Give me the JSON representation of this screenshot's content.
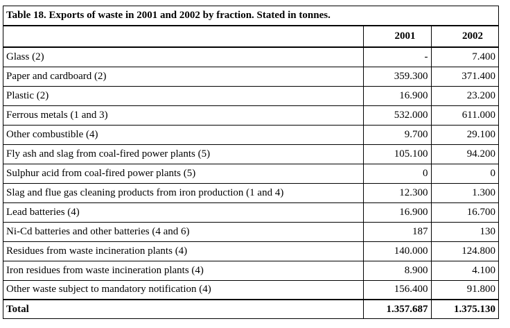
{
  "table": {
    "title": "Table 18. Exports of waste in 2001 and 2002 by fraction. Stated in tonnes.",
    "headers": [
      "",
      "2001",
      "2002"
    ],
    "rows": [
      {
        "label": "Glass (2)",
        "y2001": "-",
        "y2002": "7.400"
      },
      {
        "label": "Paper and cardboard (2)",
        "y2001": "359.300",
        "y2002": "371.400"
      },
      {
        "label": "Plastic (2)",
        "y2001": "16.900",
        "y2002": "23.200"
      },
      {
        "label": "Ferrous metals (1 and 3)",
        "y2001": "532.000",
        "y2002": "611.000"
      },
      {
        "label": "Other combustible (4)",
        "y2001": "9.700",
        "y2002": "29.100"
      },
      {
        "label": "Fly ash and slag from coal-fired power plants (5)",
        "y2001": "105.100",
        "y2002": "94.200"
      },
      {
        "label": "Sulphur acid from coal-fired power plants (5)",
        "y2001": "0",
        "y2002": "0"
      },
      {
        "label": "Slag and flue gas cleaning products from iron production (1 and 4)",
        "y2001": "12.300",
        "y2002": "1.300"
      },
      {
        "label": "Lead batteries (4)",
        "y2001": "16.900",
        "y2002": "16.700"
      },
      {
        "label": "Ni-Cd batteries and other batteries (4 and 6)",
        "y2001": "187",
        "y2002": "130"
      },
      {
        "label": "Residues from waste incineration plants (4)",
        "y2001": "140.000",
        "y2002": "124.800"
      },
      {
        "label": "Iron residues from waste incineration plants (4)",
        "y2001": "8.900",
        "y2002": "4.100"
      },
      {
        "label": "Other waste subject to mandatory notification (4)",
        "y2001": "156.400",
        "y2002": "91.800"
      }
    ],
    "total": {
      "label": "Total",
      "y2001": "1.357.687",
      "y2002": "1.375.130"
    }
  }
}
